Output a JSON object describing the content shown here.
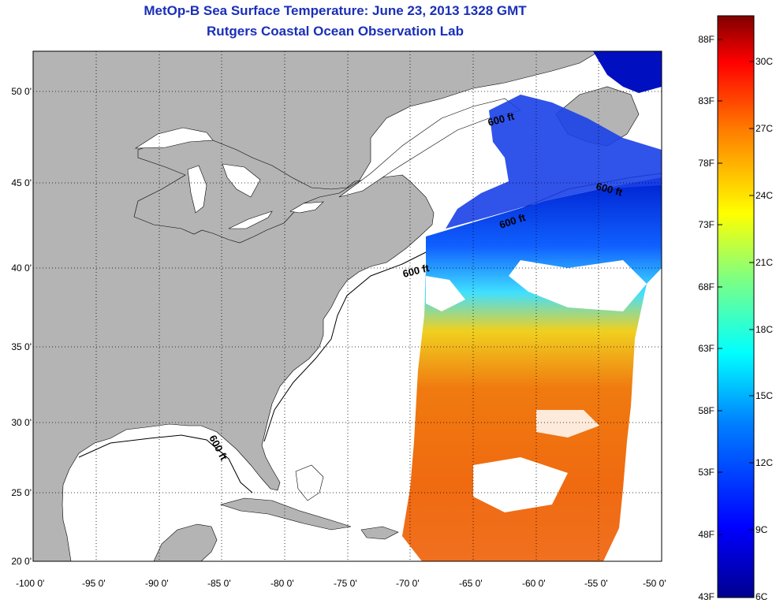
{
  "title": "MetOp-B Sea Surface Temperature:  June 23, 2013 1328 GMT",
  "subtitle": "Rutgers Coastal Ocean Observation Lab",
  "lon_ticks": [
    "-100 0'",
    "-95 0'",
    "-90 0'",
    "-85 0'",
    "-80 0'",
    "-75 0'",
    "-70 0'",
    "-65 0'",
    "-60 0'",
    "-55 0'",
    "-50 0'"
  ],
  "lat_ticks": [
    "20 0'",
    "25 0'",
    "30 0'",
    "35 0'",
    "40 0'",
    "45 0'",
    "50 0'"
  ],
  "contour_labels": [
    "600 ft",
    "600 ft",
    "600 ft",
    "600 ft",
    "600 ft"
  ],
  "colorbar": {
    "fahrenheit": [
      "88F",
      "83F",
      "78F",
      "73F",
      "68F",
      "63F",
      "58F",
      "53F",
      "48F",
      "43F"
    ],
    "celsius": [
      "30C",
      "27C",
      "24C",
      "21C",
      "18C",
      "15C",
      "12C",
      "9C",
      "6C"
    ],
    "colors": [
      "#00008f",
      "#0000ff",
      "#0080ff",
      "#00ffff",
      "#80ff80",
      "#ffff00",
      "#ff8000",
      "#ff0000",
      "#800000"
    ]
  },
  "colors": {
    "land": "#b4b4b4",
    "ocean_nodata": "#ffffff",
    "title": "#1a2fb8"
  }
}
